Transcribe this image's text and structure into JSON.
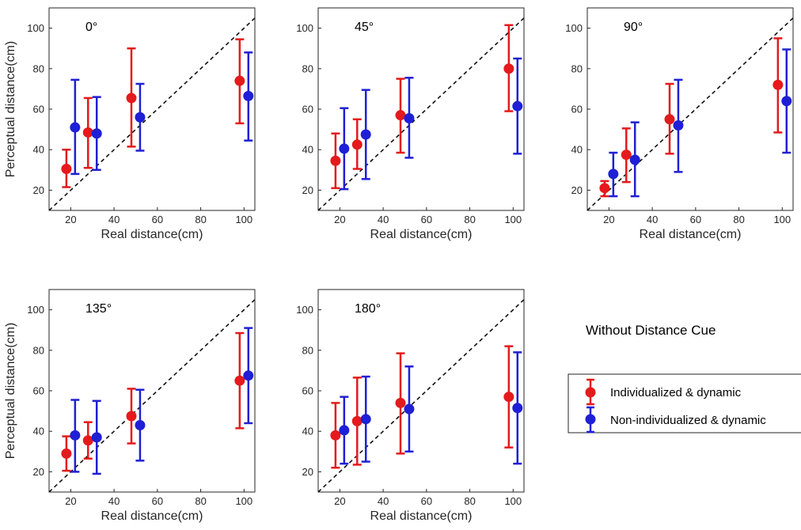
{
  "figure": {
    "condition_title": "Without Distance Cue",
    "legend": [
      {
        "label": "Individualized & dynamic",
        "color": "#e41a1c"
      },
      {
        "label": "Non-individualized & dynamic",
        "color": "#1f1fd6"
      }
    ]
  },
  "chart_data": [
    {
      "type": "scatter",
      "title": "0°",
      "xlabel": "Real distance(cm)",
      "ylabel": "Perceptual distance(cm)",
      "xlim": [
        10,
        105
      ],
      "ylim": [
        10,
        110
      ],
      "xticks": [
        20,
        40,
        60,
        80,
        100
      ],
      "yticks": [
        20,
        40,
        60,
        80,
        100
      ],
      "reference_line": "y = x (dashed)",
      "series": [
        {
          "name": "Individualized & dynamic",
          "color": "#e41a1c",
          "x": [
            18,
            28,
            48,
            98
          ],
          "y": [
            30.5,
            48.5,
            65.5,
            74
          ],
          "low": [
            21.5,
            31,
            41.5,
            53
          ],
          "high": [
            40,
            65.5,
            90,
            94.5
          ]
        },
        {
          "name": "Non-individualized & dynamic",
          "color": "#1f1fd6",
          "x": [
            22,
            32,
            52,
            102
          ],
          "y": [
            51,
            48,
            56,
            66.5
          ],
          "low": [
            28,
            30,
            39.5,
            44.5
          ],
          "high": [
            74.5,
            66,
            72.5,
            88
          ]
        }
      ]
    },
    {
      "type": "scatter",
      "title": "45°",
      "xlabel": "Real distance(cm)",
      "ylabel": "",
      "xlim": [
        10,
        105
      ],
      "ylim": [
        10,
        110
      ],
      "xticks": [
        20,
        40,
        60,
        80,
        100
      ],
      "yticks": [
        20,
        40,
        60,
        80,
        100
      ],
      "reference_line": "y = x (dashed)",
      "series": [
        {
          "name": "Individualized & dynamic",
          "color": "#e41a1c",
          "x": [
            18,
            28,
            48,
            98
          ],
          "y": [
            34.5,
            42.5,
            57,
            80
          ],
          "low": [
            21,
            30.5,
            38.5,
            59
          ],
          "high": [
            48,
            55,
            75,
            101.5
          ]
        },
        {
          "name": "Non-individualized & dynamic",
          "color": "#1f1fd6",
          "x": [
            22,
            32,
            52,
            102
          ],
          "y": [
            40.5,
            47.5,
            55.5,
            61.5
          ],
          "low": [
            20.5,
            25.5,
            36,
            38
          ],
          "high": [
            60.5,
            69.5,
            75.5,
            85
          ]
        }
      ]
    },
    {
      "type": "scatter",
      "title": "90°",
      "xlabel": "Real distance(cm)",
      "ylabel": "",
      "xlim": [
        10,
        105
      ],
      "ylim": [
        10,
        110
      ],
      "xticks": [
        20,
        40,
        60,
        80,
        100
      ],
      "yticks": [
        20,
        40,
        60,
        80,
        100
      ],
      "reference_line": "y = x (dashed)",
      "series": [
        {
          "name": "Individualized & dynamic",
          "color": "#e41a1c",
          "x": [
            18,
            28,
            48,
            98
          ],
          "y": [
            21,
            37.5,
            55,
            72
          ],
          "low": [
            17,
            24,
            38,
            48.5
          ],
          "high": [
            24.5,
            50.5,
            72.5,
            95
          ]
        },
        {
          "name": "Non-individualized & dynamic",
          "color": "#1f1fd6",
          "x": [
            22,
            32,
            52,
            102
          ],
          "y": [
            28,
            35,
            52,
            64
          ],
          "low": [
            17,
            17,
            29,
            38.5
          ],
          "high": [
            38.5,
            53.5,
            74.5,
            89.5
          ]
        }
      ]
    },
    {
      "type": "scatter",
      "title": "135°",
      "xlabel": "Real distance(cm)",
      "ylabel": "Perceptual distance(cm)",
      "xlim": [
        10,
        105
      ],
      "ylim": [
        10,
        110
      ],
      "xticks": [
        20,
        40,
        60,
        80,
        100
      ],
      "yticks": [
        20,
        40,
        60,
        80,
        100
      ],
      "reference_line": "y = x (dashed)",
      "series": [
        {
          "name": "Individualized & dynamic",
          "color": "#e41a1c",
          "x": [
            18,
            28,
            48,
            98
          ],
          "y": [
            29,
            35.5,
            47.5,
            65
          ],
          "low": [
            20.5,
            26.5,
            34,
            41.5
          ],
          "high": [
            37.5,
            44.5,
            61,
            88.5
          ]
        },
        {
          "name": "Non-individualized & dynamic",
          "color": "#1f1fd6",
          "x": [
            22,
            32,
            52,
            102
          ],
          "y": [
            38,
            37,
            43,
            67.5
          ],
          "low": [
            20,
            19,
            25.5,
            44
          ],
          "high": [
            55.5,
            55,
            60.5,
            91
          ]
        }
      ]
    },
    {
      "type": "scatter",
      "title": "180°",
      "xlabel": "Real distance(cm)",
      "ylabel": "",
      "xlim": [
        10,
        105
      ],
      "ylim": [
        10,
        110
      ],
      "xticks": [
        20,
        40,
        60,
        80,
        100
      ],
      "yticks": [
        20,
        40,
        60,
        80,
        100
      ],
      "reference_line": "y = x (dashed)",
      "series": [
        {
          "name": "Individualized & dynamic",
          "color": "#e41a1c",
          "x": [
            18,
            28,
            48,
            98
          ],
          "y": [
            38,
            45,
            54,
            57
          ],
          "low": [
            22,
            23.5,
            29,
            32
          ],
          "high": [
            54,
            66.5,
            78.5,
            82
          ]
        },
        {
          "name": "Non-individualized & dynamic",
          "color": "#1f1fd6",
          "x": [
            22,
            32,
            52,
            102
          ],
          "y": [
            40.5,
            46,
            51,
            51.5
          ],
          "low": [
            24,
            25,
            30,
            24
          ],
          "high": [
            57,
            67,
            72,
            79
          ]
        }
      ]
    }
  ]
}
